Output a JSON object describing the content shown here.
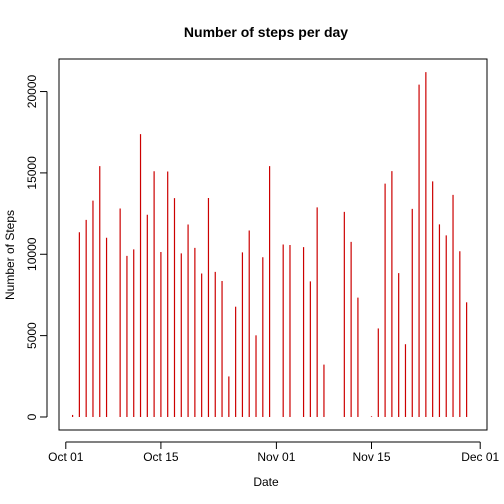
{
  "chart_data": {
    "type": "bar",
    "title": "Number of steps per day",
    "xlabel": "Date",
    "ylabel": "Number of Steps",
    "color": "#cc0000",
    "grid": false,
    "x_range": [
      "2012-09-30",
      "2012-12-02"
    ],
    "ylim": [
      -800,
      22000
    ],
    "x_ticks": [
      {
        "date": "2012-10-01",
        "label": "Oct 01"
      },
      {
        "date": "2012-10-15",
        "label": "Oct 15"
      },
      {
        "date": "2012-11-01",
        "label": "Nov 01"
      },
      {
        "date": "2012-11-15",
        "label": "Nov 15"
      },
      {
        "date": "2012-12-01",
        "label": "Dec 01"
      }
    ],
    "y_ticks": [
      0,
      5000,
      10000,
      15000,
      20000
    ],
    "dates": [
      "2012-10-02",
      "2012-10-03",
      "2012-10-04",
      "2012-10-05",
      "2012-10-06",
      "2012-10-07",
      "2012-10-09",
      "2012-10-10",
      "2012-10-11",
      "2012-10-12",
      "2012-10-13",
      "2012-10-14",
      "2012-10-15",
      "2012-10-16",
      "2012-10-17",
      "2012-10-18",
      "2012-10-19",
      "2012-10-20",
      "2012-10-21",
      "2012-10-22",
      "2012-10-23",
      "2012-10-24",
      "2012-10-25",
      "2012-10-26",
      "2012-10-27",
      "2012-10-28",
      "2012-10-29",
      "2012-10-30",
      "2012-10-31",
      "2012-11-02",
      "2012-11-03",
      "2012-11-05",
      "2012-11-06",
      "2012-11-07",
      "2012-11-08",
      "2012-11-11",
      "2012-11-12",
      "2012-11-13",
      "2012-11-15",
      "2012-11-16",
      "2012-11-17",
      "2012-11-18",
      "2012-11-19",
      "2012-11-20",
      "2012-11-21",
      "2012-11-22",
      "2012-11-23",
      "2012-11-24",
      "2012-11-25",
      "2012-11-26",
      "2012-11-27",
      "2012-11-28",
      "2012-11-29"
    ],
    "values": [
      126,
      11352,
      12116,
      13294,
      15420,
      11015,
      12811,
      9900,
      10304,
      17382,
      12426,
      15098,
      10139,
      15084,
      13452,
      10056,
      11829,
      10395,
      8821,
      13460,
      8918,
      8355,
      2492,
      6778,
      10119,
      11458,
      5018,
      9819,
      15414,
      10600,
      10571,
      10439,
      8334,
      12883,
      3219,
      12608,
      10765,
      7336,
      41,
      5441,
      14339,
      15110,
      8841,
      4472,
      12787,
      20427,
      21194,
      14478,
      11834,
      11162,
      13646,
      10183,
      7047
    ]
  }
}
